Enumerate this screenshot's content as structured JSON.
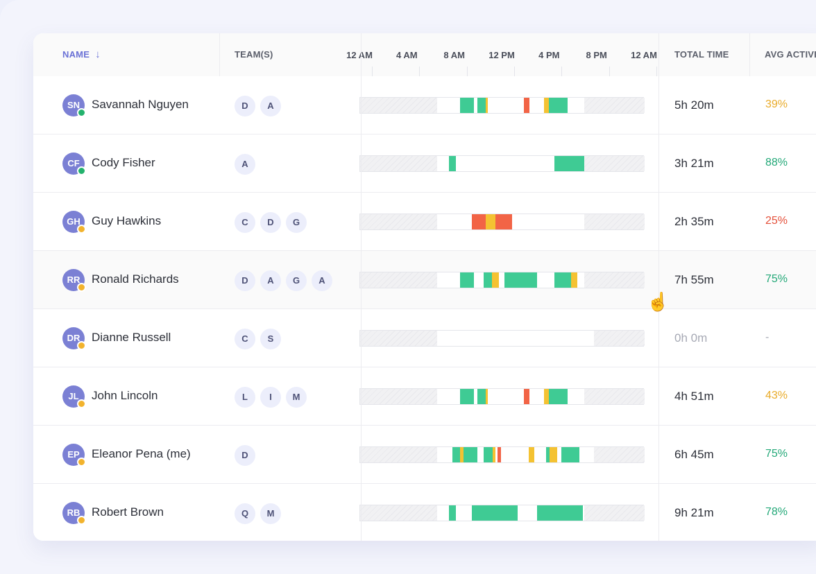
{
  "colors": {
    "active": "#3fcb94",
    "neutral": "#f4c232",
    "unproductive": "#f26446",
    "status_online": "#23b26d",
    "status_away": "#f2b32d",
    "pct_high": "#23a878",
    "pct_mid": "#e9ab2a",
    "pct_low": "#e4503a"
  },
  "header": {
    "name": "NAME",
    "sort_icon": "arrow-down-icon",
    "teams": "TEAM(S)",
    "timeline_ticks": [
      "12 AM",
      "4 AM",
      "8 AM",
      "12 PM",
      "4 PM",
      "8 PM",
      "12 AM"
    ],
    "total": "TOTAL TIME",
    "avg": "AVG ACTIVI"
  },
  "rows": [
    {
      "initials": "SN",
      "name": "Savannah Nguyen",
      "status": "online",
      "teams": [
        "D",
        "A"
      ],
      "total": "5h 20m",
      "avg": "39%",
      "avg_level": "mid",
      "timeline": {
        "hatch_before": [
          0,
          6.5
        ],
        "hatch_after": [
          18.9,
          24
        ],
        "segments": [
          [
            8.4,
            9.6,
            "active"
          ],
          [
            9.9,
            10.6,
            "active"
          ],
          [
            10.6,
            10.8,
            "neutral"
          ],
          [
            13.8,
            14.3,
            "unproductive"
          ],
          [
            15.5,
            15.9,
            "neutral"
          ],
          [
            15.9,
            17.5,
            "active"
          ]
        ]
      }
    },
    {
      "initials": "CF",
      "name": "Cody Fisher",
      "status": "online",
      "teams": [
        "A"
      ],
      "total": "3h 21m",
      "avg": "88%",
      "avg_level": "high",
      "timeline": {
        "hatch_before": [
          0,
          6.5
        ],
        "hatch_after": [
          18.9,
          24
        ],
        "segments": [
          [
            7.5,
            8.1,
            "active"
          ],
          [
            16.4,
            18.9,
            "active"
          ]
        ]
      }
    },
    {
      "initials": "GH",
      "name": "Guy Hawkins",
      "status": "away",
      "teams": [
        "C",
        "D",
        "G"
      ],
      "total": "2h 35m",
      "avg": "25%",
      "avg_level": "low",
      "timeline": {
        "hatch_before": [
          0,
          6.5
        ],
        "hatch_after": [
          18.9,
          24
        ],
        "segments": [
          [
            9.4,
            10.6,
            "unproductive"
          ],
          [
            10.6,
            11.4,
            "neutral"
          ],
          [
            11.4,
            11.7,
            "unproductive"
          ],
          [
            11.7,
            12.8,
            "unproductive"
          ]
        ]
      }
    },
    {
      "initials": "RR",
      "name": "Ronald Richards",
      "status": "away",
      "teams": [
        "D",
        "A",
        "G",
        "A"
      ],
      "total": "7h 55m",
      "avg": "75%",
      "avg_level": "high",
      "timeline": {
        "hatch_before": [
          0,
          6.5
        ],
        "hatch_after": [
          18.9,
          24
        ],
        "segments": [
          [
            8.4,
            9.6,
            "active"
          ],
          [
            10.4,
            11.1,
            "active"
          ],
          [
            11.1,
            11.7,
            "neutral"
          ],
          [
            12.2,
            14.9,
            "active"
          ],
          [
            16.4,
            17.8,
            "active"
          ],
          [
            17.8,
            18.3,
            "neutral"
          ]
        ]
      }
    },
    {
      "initials": "DR",
      "name": "Dianne Russell",
      "status": "away",
      "teams": [
        "C",
        "S"
      ],
      "total": "0h 0m",
      "avg": "-",
      "avg_level": "none",
      "timeline": {
        "hatch_before": [
          0,
          6.5
        ],
        "hatch_after": [
          19.7,
          24
        ],
        "segments": []
      }
    },
    {
      "initials": "JL",
      "name": "John Lincoln",
      "status": "away",
      "teams": [
        "L",
        "I",
        "M"
      ],
      "total": "4h 51m",
      "avg": "43%",
      "avg_level": "mid",
      "timeline": {
        "hatch_before": [
          0,
          6.5
        ],
        "hatch_after": [
          18.9,
          24
        ],
        "segments": [
          [
            8.4,
            9.6,
            "active"
          ],
          [
            9.9,
            10.6,
            "active"
          ],
          [
            10.6,
            10.8,
            "neutral"
          ],
          [
            13.8,
            14.3,
            "unproductive"
          ],
          [
            15.5,
            15.9,
            "neutral"
          ],
          [
            15.9,
            17.5,
            "active"
          ]
        ]
      }
    },
    {
      "initials": "EP",
      "name": "Eleanor Pena (me)",
      "status": "away",
      "teams": [
        "D"
      ],
      "total": "6h 45m",
      "avg": "75%",
      "avg_level": "high",
      "timeline": {
        "hatch_before": [
          0,
          6.5
        ],
        "hatch_after": [
          19.7,
          24
        ],
        "segments": [
          [
            7.8,
            8.4,
            "active"
          ],
          [
            8.4,
            8.7,
            "neutral"
          ],
          [
            8.7,
            9.9,
            "active"
          ],
          [
            10.4,
            11.2,
            "active"
          ],
          [
            11.2,
            11.4,
            "neutral"
          ],
          [
            11.6,
            11.9,
            "unproductive"
          ],
          [
            14.2,
            14.7,
            "neutral"
          ],
          [
            15.7,
            16.0,
            "active"
          ],
          [
            16.0,
            16.6,
            "neutral"
          ],
          [
            17.0,
            18.5,
            "active"
          ]
        ]
      }
    },
    {
      "initials": "RB",
      "name": "Robert Brown",
      "status": "away",
      "teams": [
        "Q",
        "M"
      ],
      "total": "9h 21m",
      "avg": "78%",
      "avg_level": "high",
      "timeline": {
        "hatch_before": [
          0,
          6.5
        ],
        "hatch_after": [
          18.9,
          24
        ],
        "segments": [
          [
            7.5,
            8.1,
            "active"
          ],
          [
            9.4,
            13.3,
            "active"
          ],
          [
            14.9,
            18.8,
            "active"
          ]
        ]
      }
    }
  ],
  "cursor_icon": "hand-pointer-icon"
}
